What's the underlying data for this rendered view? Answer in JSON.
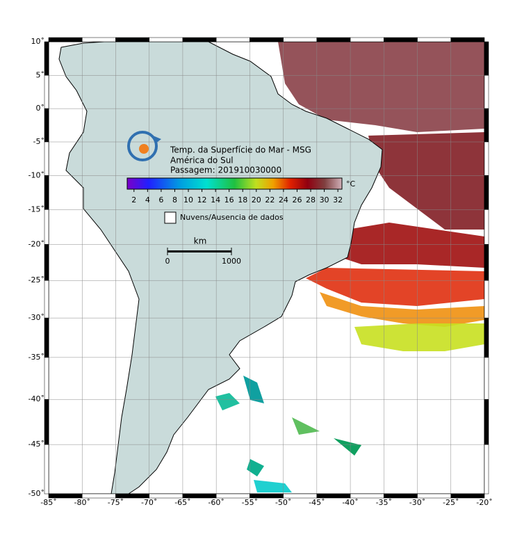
{
  "title_lines": [
    "Temp. da Superfície do Mar - MSG",
    "América do Sul",
    "Passagem: 201910030000"
  ],
  "colorbar": {
    "unit": "°C",
    "lim": [
      1,
      32.6
    ],
    "ticks": [
      2,
      4,
      6,
      8,
      10,
      12,
      14,
      16,
      18,
      20,
      22,
      24,
      26,
      28,
      30,
      32
    ]
  },
  "legend": {
    "label": "Nuvens/Ausencia de dados"
  },
  "scale_bar": {
    "unit": "km",
    "lim": [
      0,
      1000
    ],
    "ticks": [
      0,
      1000
    ]
  },
  "lon_axis": {
    "lim": [
      -85,
      -20
    ],
    "ticks": [
      {
        "value": -85,
        "label": "-85˚"
      },
      {
        "value": -80,
        "label": "-80˚"
      },
      {
        "value": -75,
        "label": "-75˚"
      },
      {
        "value": -70,
        "label": "-70˚"
      },
      {
        "value": -65,
        "label": "-65˚"
      },
      {
        "value": -60,
        "label": "-60˚"
      },
      {
        "value": -55,
        "label": "-55˚"
      },
      {
        "value": -50,
        "label": "-50˚"
      },
      {
        "value": -45,
        "label": "-45˚"
      },
      {
        "value": -40,
        "label": "-40˚"
      },
      {
        "value": -35,
        "label": "-35˚"
      },
      {
        "value": -30,
        "label": "-30˚"
      },
      {
        "value": -25,
        "label": "-25˚"
      },
      {
        "value": -20,
        "label": "-20˚"
      }
    ]
  },
  "lat_axis": {
    "lim": [
      -50,
      10
    ],
    "ticks": [
      {
        "value": 10,
        "label": "10˚"
      },
      {
        "value": 5,
        "label": "5˚"
      },
      {
        "value": 0,
        "label": "0˚"
      },
      {
        "value": -5,
        "label": "-5˚"
      },
      {
        "value": -10,
        "label": "-10˚"
      },
      {
        "value": -15,
        "label": "-15˚"
      },
      {
        "value": -20,
        "label": "-20˚"
      },
      {
        "value": -25,
        "label": "-25˚"
      },
      {
        "value": -30,
        "label": "-30˚"
      },
      {
        "value": -35,
        "label": "-35˚"
      },
      {
        "value": -40,
        "label": "-40˚"
      },
      {
        "value": -45,
        "label": "-45˚"
      },
      {
        "value": -50,
        "label": "-50˚"
      }
    ]
  }
}
